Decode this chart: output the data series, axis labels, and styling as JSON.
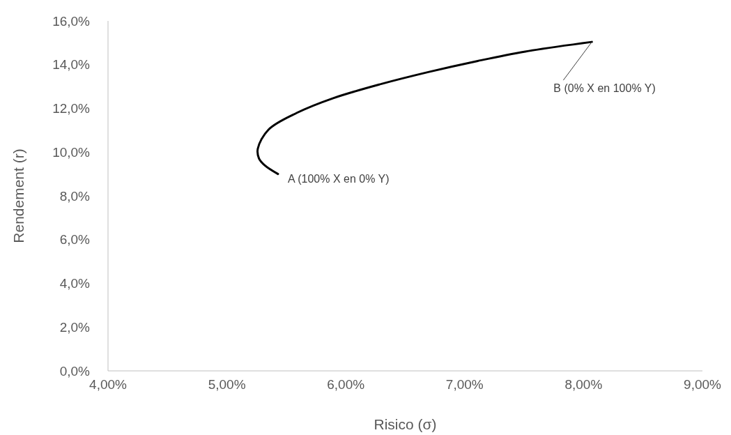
{
  "chart_data": {
    "type": "line",
    "xlabel": "Risico (σ)",
    "ylabel": "Rendement (r)",
    "xlim": [
      4,
      9
    ],
    "ylim": [
      0,
      16
    ],
    "xticks": [
      {
        "value": 4,
        "label": "4,00%"
      },
      {
        "value": 5,
        "label": "5,00%"
      },
      {
        "value": 6,
        "label": "6,00%"
      },
      {
        "value": 7,
        "label": "7,00%"
      },
      {
        "value": 8,
        "label": "8,00%"
      },
      {
        "value": 9,
        "label": "9,00%"
      }
    ],
    "yticks": [
      {
        "value": 0,
        "label": "0,0%"
      },
      {
        "value": 2,
        "label": "2,0%"
      },
      {
        "value": 4,
        "label": "4,0%"
      },
      {
        "value": 6,
        "label": "6,0%"
      },
      {
        "value": 8,
        "label": "8,0%"
      },
      {
        "value": 10,
        "label": "10,0%"
      },
      {
        "value": 12,
        "label": "12,0%"
      },
      {
        "value": 14,
        "label": "14,0%"
      },
      {
        "value": 16,
        "label": "16,0%"
      }
    ],
    "grid": false,
    "marker": "none",
    "line_style": "solid",
    "series": [
      {
        "color": "#000000",
        "x": [
          5.43,
          5.32,
          5.27,
          5.26,
          5.35,
          5.59,
          5.89,
          6.3,
          6.7,
          7.11,
          7.51,
          8.07
        ],
        "values": [
          9.0,
          9.39,
          9.71,
          10.16,
          11.03,
          11.8,
          12.46,
          13.12,
          13.67,
          14.17,
          14.6,
          15.04
        ]
      }
    ],
    "annotations": [
      {
        "text": "A (100% X en 0% Y)",
        "x": 5.43,
        "y": 9.0
      },
      {
        "text": "B (0% X en 100% Y)",
        "x": 8.07,
        "y": 15.04
      }
    ]
  }
}
